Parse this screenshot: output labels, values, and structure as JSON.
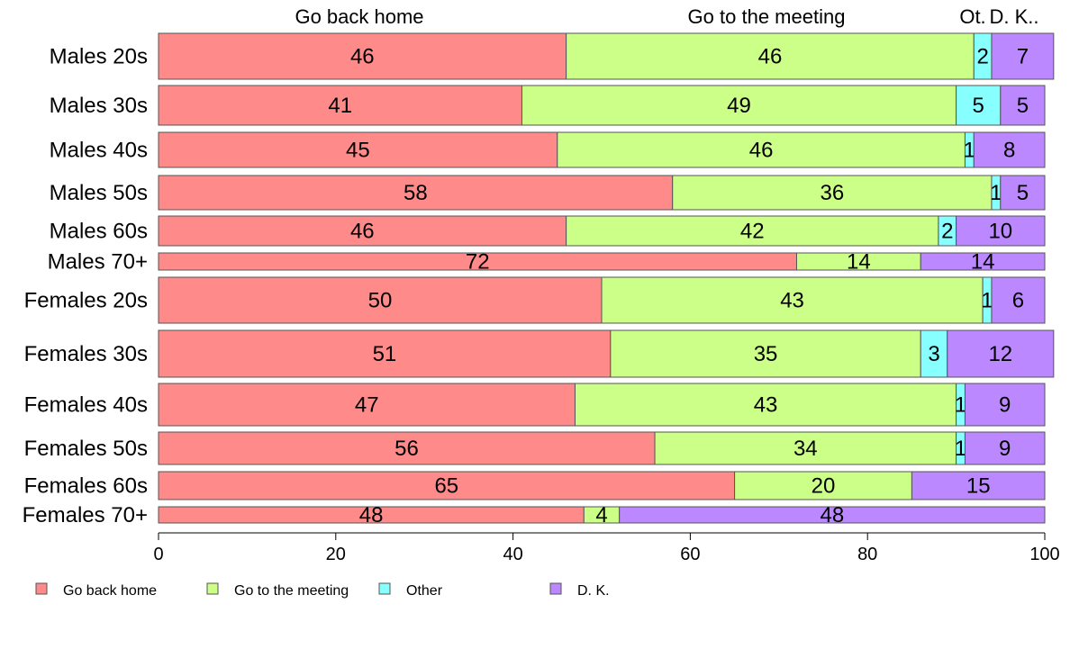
{
  "chart_data": {
    "type": "bar",
    "orientation": "horizontal",
    "stacked": true,
    "categories": [
      "Males 20s",
      "Males 30s",
      "Males 40s",
      "Males 50s",
      "Males 60s",
      "Males 70+",
      "Females 20s",
      "Females 30s",
      "Females 40s",
      "Females 50s",
      "Females 60s",
      "Females 70+"
    ],
    "series": [
      {
        "name": "Go back home",
        "color": "#ff8a8a",
        "values": [
          46,
          41,
          45,
          58,
          46,
          72,
          50,
          51,
          47,
          56,
          65,
          48
        ]
      },
      {
        "name": "Go to the meeting",
        "color": "#ccff88",
        "values": [
          46,
          49,
          46,
          36,
          42,
          14,
          43,
          35,
          43,
          34,
          20,
          4
        ]
      },
      {
        "name": "Other",
        "color": "#88ffff",
        "values": [
          2,
          5,
          1,
          1,
          2,
          0,
          1,
          3,
          1,
          1,
          0,
          0
        ]
      },
      {
        "name": "D. K.",
        "color": "#bb88ff",
        "values": [
          7,
          5,
          8,
          5,
          10,
          14,
          6,
          12,
          9,
          9,
          15,
          48
        ]
      }
    ],
    "column_labels": [
      "Go back home",
      "Go to the meeting",
      "Ot.",
      "D. K.."
    ],
    "xlim": [
      0,
      100
    ],
    "xticks": [
      0,
      20,
      40,
      60,
      80,
      100
    ],
    "grid": false,
    "legend_position": "bottom",
    "title": "",
    "xlabel": "",
    "ylabel": ""
  }
}
